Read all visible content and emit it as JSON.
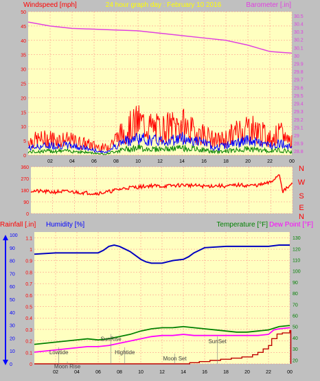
{
  "header": {
    "left": "Windspeed [mph]",
    "center": "24 hour graph day : February 10 2016",
    "right": "Barometer [.in]"
  },
  "colors": {
    "plot_bg": "#ffffc0",
    "frame": "#c0c0c0",
    "grid": "#ff8080",
    "wind_gust": "#ff0000",
    "wind_avg": "#0000ff",
    "wind_low": "#008000",
    "barometer": "#e040e0",
    "direction": "#ff0000",
    "humidity": "#0000c0",
    "temperature": "#008000",
    "dewpoint": "#ff00ff",
    "rainfall": "#c00000",
    "header_red": "#ff0000",
    "header_yellow": "#ffff00",
    "barometer_label": "#e040e0",
    "humidity_label": "#0000ff",
    "temperature_label": "#008000",
    "dewpoint_label": "#ff00ff"
  },
  "chart_data": [
    {
      "id": "wind-barometer",
      "type": "line",
      "x_ticks": [
        "02",
        "04",
        "06",
        "08",
        "10",
        "12",
        "14",
        "16",
        "18",
        "20",
        "22",
        "00"
      ],
      "xlim": [
        0,
        24
      ],
      "ylim_left": [
        0,
        50
      ],
      "yticks_left": [
        "0",
        "5",
        "10",
        "15",
        "20",
        "25",
        "30",
        "35",
        "40",
        "45",
        "50"
      ],
      "ylim_right": [
        28.75,
        30.55
      ],
      "yticks_right": [
        "28.8",
        "28.9",
        "29",
        "29.1",
        "29.2",
        "29.3",
        "29.4",
        "29.5",
        "29.6",
        "29.7",
        "29.8",
        "29.9",
        "30",
        "30.1",
        "30.2",
        "30.3",
        "30.4",
        "30.5"
      ],
      "barometer": {
        "x": [
          0,
          2,
          4,
          6,
          8,
          10,
          12,
          14,
          16,
          18,
          20,
          21,
          22,
          23,
          24
        ],
        "y": [
          30.42,
          30.37,
          30.34,
          30.33,
          30.32,
          30.31,
          30.28,
          30.25,
          30.22,
          30.19,
          30.13,
          30.09,
          30.05,
          30.04,
          30.03
        ]
      },
      "wind_gust_envelope": {
        "x": [
          0,
          2,
          4,
          6,
          7,
          8,
          9,
          10,
          11,
          12,
          13,
          14,
          15,
          16,
          17,
          18,
          19,
          20,
          21,
          22,
          23,
          24
        ],
        "y": [
          6,
          7,
          6,
          4,
          3,
          7,
          11,
          14,
          12,
          11,
          12,
          13,
          10,
          9,
          6,
          7,
          10,
          12,
          10,
          7,
          9,
          6
        ]
      },
      "wind_avg_envelope": {
        "x": [
          0,
          2,
          4,
          6,
          7,
          8,
          9,
          10,
          11,
          12,
          13,
          14,
          15,
          16,
          17,
          18,
          19,
          20,
          21,
          22,
          23,
          24
        ],
        "y": [
          3,
          4,
          4,
          2,
          1,
          4,
          6,
          7,
          6,
          6,
          6,
          7,
          6,
          5,
          3,
          4,
          5,
          6,
          5,
          4,
          5,
          3
        ]
      }
    },
    {
      "id": "wind-direction",
      "type": "line",
      "right_labels": [
        "N",
        "W",
        "S",
        "E",
        "N"
      ],
      "yticks": [
        "360",
        "270",
        "180",
        "90",
        "0"
      ],
      "ylim": [
        0,
        360
      ],
      "series": {
        "x": [
          0,
          1,
          2,
          3,
          4,
          5,
          6,
          7,
          8,
          9,
          10,
          11,
          12,
          13,
          14,
          15,
          16,
          17,
          18,
          19,
          20,
          21,
          22,
          22.8,
          23.1,
          23.5,
          24
        ],
        "y": [
          175,
          170,
          165,
          170,
          165,
          160,
          155,
          165,
          185,
          200,
          205,
          215,
          210,
          215,
          220,
          215,
          210,
          215,
          210,
          220,
          215,
          220,
          240,
          305,
          170,
          195,
          230
        ]
      }
    },
    {
      "id": "humidity-temperature",
      "type": "line",
      "labels": {
        "rainfall": "Rainfall [.in]",
        "humidity": "Humidity [%]",
        "temperature": "Temperature [°F]",
        "dewpoint": "Dew Point [°F]"
      },
      "yticks_humidity": [
        "0",
        "10",
        "20",
        "30",
        "40",
        "50",
        "60",
        "70",
        "80",
        "90",
        "100"
      ],
      "ylim_humidity": [
        0,
        100
      ],
      "yticks_rain": [
        "0",
        "0.1",
        "0.2",
        "0.3",
        "0.4",
        "0.5",
        "0.6",
        "0.7",
        "0.8",
        "0.9",
        "1",
        "1.1"
      ],
      "ylim_rain": [
        0,
        1.15
      ],
      "yticks_temp": [
        "20",
        "30",
        "40",
        "50",
        "60",
        "70",
        "80",
        "90",
        "100",
        "110",
        "120",
        "130"
      ],
      "ylim_temp": [
        16.5,
        135
      ],
      "humidity": {
        "x": [
          0,
          2,
          4,
          6,
          6.5,
          7,
          7.5,
          8,
          8.5,
          9,
          9.5,
          10,
          10.5,
          11,
          12,
          13,
          14,
          14.5,
          15,
          16,
          18,
          20,
          22,
          23,
          24
        ],
        "y": [
          85,
          86,
          86,
          86,
          88,
          91,
          92,
          91,
          89,
          87,
          84,
          81,
          79,
          78,
          78,
          80,
          81,
          83,
          86,
          90,
          91,
          91,
          91,
          92,
          92
        ]
      },
      "temperature": {
        "x": [
          0,
          1,
          2,
          3,
          4,
          5,
          6,
          7,
          8,
          9,
          10,
          11,
          12,
          13,
          14,
          15,
          16,
          17,
          18,
          19,
          20,
          21,
          22,
          23,
          24
        ],
        "y": [
          34,
          35,
          36,
          37,
          38,
          39,
          38,
          39,
          41,
          43,
          46,
          48,
          49,
          49,
          50,
          49,
          48,
          47,
          46,
          45,
          45,
          46,
          47,
          50,
          51
        ]
      },
      "dewpoint": {
        "x": [
          0,
          1,
          2,
          3,
          4,
          5,
          6,
          7,
          8,
          9,
          10,
          11,
          12,
          13,
          14,
          15,
          16,
          17,
          18,
          19,
          20,
          21,
          22,
          22.5,
          23,
          24
        ],
        "y": [
          27,
          28,
          29,
          30,
          31,
          32,
          32,
          33,
          35,
          37,
          39,
          41,
          42,
          42,
          43,
          42,
          42,
          42,
          42,
          42,
          42,
          42,
          43,
          47,
          48,
          49
        ]
      },
      "rainfall": {
        "x": [
          0,
          14.6,
          14.6,
          15.5,
          15.5,
          16.5,
          16.5,
          17.5,
          17.5,
          18.5,
          18.5,
          19.5,
          19.5,
          20.5,
          20.5,
          21,
          21,
          21.5,
          21.5,
          22,
          22,
          22.3,
          22.3,
          22.8,
          22.8,
          23.3,
          23.3,
          24,
          24,
          24.1,
          24.1
        ],
        "y": [
          0,
          0,
          0.01,
          0.01,
          0.02,
          0.02,
          0.03,
          0.03,
          0.04,
          0.04,
          0.05,
          0.05,
          0.06,
          0.06,
          0.08,
          0.08,
          0.1,
          0.1,
          0.13,
          0.13,
          0.16,
          0.16,
          0.22,
          0.22,
          0.26,
          0.26,
          0.27,
          0.27,
          0.29,
          0.29,
          0
        ]
      },
      "annotations": [
        {
          "label": "Lowtide",
          "x": 2.3,
          "y": 0.085
        },
        {
          "label": "Moon Rise",
          "x": 3.1,
          "y": -0.04
        },
        {
          "label": "SunRise",
          "x": 7.2,
          "y": 0.2
        },
        {
          "label": "Hightide",
          "x": 8.5,
          "y": 0.085
        },
        {
          "label": "Moon Set",
          "x": 13.2,
          "y": 0.03
        },
        {
          "label": "SunSet",
          "x": 17.2,
          "y": 0.18
        }
      ]
    }
  ]
}
